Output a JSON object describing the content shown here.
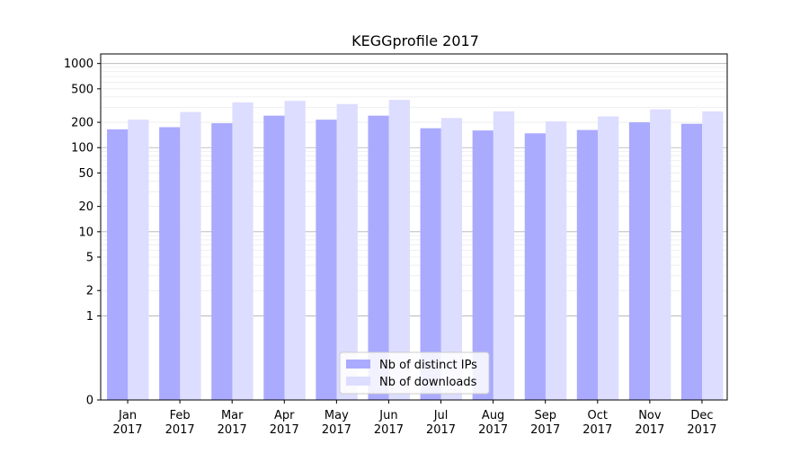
{
  "chart_data": {
    "type": "bar",
    "title": "KEGGprofile 2017",
    "xlabel": "",
    "ylabel": "",
    "y_scale": "symlog",
    "ylim": [
      0,
      1300
    ],
    "y_ticks": [
      0,
      1,
      2,
      5,
      10,
      20,
      50,
      100,
      200,
      500,
      1000
    ],
    "y_tick_labels": [
      "0",
      "1",
      "2",
      "5",
      "10",
      "20",
      "50",
      "100",
      "200",
      "500",
      "1000"
    ],
    "grid": true,
    "legend_position": "bottom-center",
    "categories": [
      {
        "month": "Jan",
        "year": "2017"
      },
      {
        "month": "Feb",
        "year": "2017"
      },
      {
        "month": "Mar",
        "year": "2017"
      },
      {
        "month": "Apr",
        "year": "2017"
      },
      {
        "month": "May",
        "year": "2017"
      },
      {
        "month": "Jun",
        "year": "2017"
      },
      {
        "month": "Jul",
        "year": "2017"
      },
      {
        "month": "Aug",
        "year": "2017"
      },
      {
        "month": "Sep",
        "year": "2017"
      },
      {
        "month": "Oct",
        "year": "2017"
      },
      {
        "month": "Nov",
        "year": "2017"
      },
      {
        "month": "Dec",
        "year": "2017"
      }
    ],
    "series": [
      {
        "name": "Nb of distinct IPs",
        "color": "#aaaaff",
        "values": [
          165,
          175,
          195,
          240,
          215,
          240,
          170,
          160,
          148,
          162,
          200,
          192
        ]
      },
      {
        "name": "Nb of downloads",
        "color": "#ddddff",
        "values": [
          215,
          265,
          345,
          360,
          330,
          370,
          225,
          270,
          205,
          235,
          285,
          270
        ]
      }
    ]
  }
}
